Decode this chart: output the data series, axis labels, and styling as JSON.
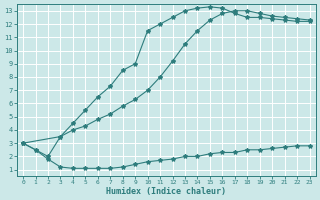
{
  "xlabel": "Humidex (Indice chaleur)",
  "bg_color": "#cce8e8",
  "line_color": "#2e7d7d",
  "grid_color": "#ffffff",
  "xlim": [
    -0.5,
    23.5
  ],
  "ylim": [
    0.5,
    13.5
  ],
  "xticks": [
    0,
    1,
    2,
    3,
    4,
    5,
    6,
    7,
    8,
    9,
    10,
    11,
    12,
    13,
    14,
    15,
    16,
    17,
    18,
    19,
    20,
    21,
    22,
    23
  ],
  "yticks": [
    1,
    2,
    3,
    4,
    5,
    6,
    7,
    8,
    9,
    10,
    11,
    12,
    13
  ],
  "line1_x": [
    0,
    1,
    2,
    3,
    4,
    5,
    6,
    7,
    8,
    9,
    10,
    11,
    12,
    13,
    14,
    15,
    16,
    17,
    18,
    19,
    20,
    21,
    22,
    23
  ],
  "line1_y": [
    3.0,
    2.5,
    1.8,
    1.2,
    1.1,
    1.1,
    1.1,
    1.1,
    1.2,
    1.4,
    1.6,
    1.7,
    1.8,
    2.0,
    2.0,
    2.2,
    2.3,
    2.3,
    2.5,
    2.5,
    2.6,
    2.7,
    2.8,
    2.8
  ],
  "line2_x": [
    0,
    3,
    4,
    5,
    6,
    7,
    8,
    9,
    10,
    11,
    12,
    13,
    14,
    15,
    16,
    17,
    18,
    19,
    20,
    21,
    22,
    23
  ],
  "line2_y": [
    3.0,
    3.5,
    4.0,
    4.3,
    4.8,
    5.2,
    5.8,
    6.3,
    7.0,
    8.0,
    9.2,
    10.5,
    11.5,
    12.3,
    12.8,
    13.0,
    13.0,
    12.8,
    12.6,
    12.5,
    12.4,
    12.3
  ],
  "line3_x": [
    0,
    1,
    2,
    3,
    4,
    5,
    6,
    7,
    8,
    9,
    10,
    11,
    12,
    13,
    14,
    15,
    16,
    17,
    18,
    19,
    20,
    21,
    22,
    23
  ],
  "line3_y": [
    3.0,
    2.5,
    2.0,
    3.5,
    4.5,
    5.5,
    6.5,
    7.3,
    8.5,
    9.0,
    11.5,
    12.0,
    12.5,
    13.0,
    13.2,
    13.3,
    13.2,
    12.8,
    12.5,
    12.5,
    12.4,
    12.3,
    12.2,
    12.2
  ]
}
